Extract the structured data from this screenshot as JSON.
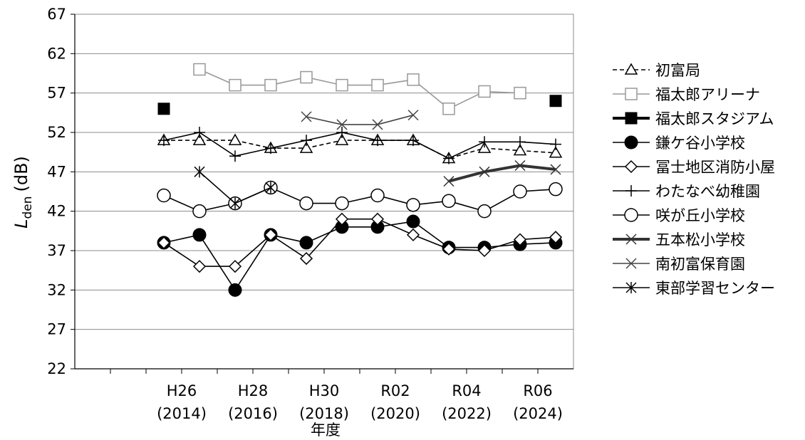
{
  "chart_data": {
    "type": "line",
    "title": "",
    "xlabel": "年度",
    "ylabel": {
      "symbol": "L",
      "subscript": "den",
      "unit": "(dB)"
    },
    "ylim": [
      22,
      67
    ],
    "yticks": [
      22,
      27,
      32,
      37,
      42,
      47,
      52,
      57,
      62,
      67
    ],
    "grid": true,
    "legend_position": "right",
    "x": [
      2013,
      2014,
      2015,
      2016,
      2017,
      2018,
      2019,
      2020,
      2021,
      2022,
      2023,
      2024
    ],
    "x_tick_labels": [
      {
        "era": "H26",
        "year": "(2014)"
      },
      {
        "era": "H28",
        "year": "(2016)"
      },
      {
        "era": "H30",
        "year": "(2018)"
      },
      {
        "era": "R02",
        "year": "(2020)"
      },
      {
        "era": "R04",
        "year": "(2022)"
      },
      {
        "era": "R06",
        "year": "(2024)"
      }
    ],
    "series": [
      {
        "name": "初富局",
        "marker": "triangle-open",
        "line": "dashed",
        "color": "#000000",
        "values": [
          51,
          51,
          51,
          50,
          50,
          51,
          51,
          51,
          48.7,
          50,
          49.7,
          49.4
        ]
      },
      {
        "name": "福太郎アリーナ",
        "marker": "square-open",
        "line": "solid",
        "color": "#999999",
        "values": [
          null,
          60,
          58,
          58,
          59,
          58,
          58,
          58.7,
          55,
          57.2,
          57,
          null
        ]
      },
      {
        "name": "福太郎スタジアム",
        "marker": "square-filled",
        "line": "thick",
        "color": "#000000",
        "values": [
          55,
          null,
          null,
          null,
          null,
          null,
          null,
          null,
          null,
          null,
          null,
          56
        ]
      },
      {
        "name": "鎌ケ谷小学校",
        "marker": "circle-filled",
        "line": "solid",
        "color": "#000000",
        "values": [
          38,
          39,
          32,
          39,
          38,
          40,
          40,
          40.7,
          37.4,
          37.4,
          37.8,
          38
        ]
      },
      {
        "name": "冨士地区消防小屋",
        "marker": "diamond-open",
        "line": "solid",
        "color": "#000000",
        "values": [
          38,
          35,
          35,
          39,
          36,
          41,
          41,
          39,
          37.2,
          37,
          38.4,
          38.7
        ]
      },
      {
        "name": "わたなべ幼稚園",
        "marker": "plus",
        "line": "solid",
        "color": "#000000",
        "values": [
          51,
          52,
          49,
          50,
          51,
          52,
          51,
          51,
          48.7,
          50.8,
          50.8,
          50.5
        ]
      },
      {
        "name": "咲が丘小学校",
        "marker": "circle-open",
        "line": "solid",
        "color": "#000000",
        "values": [
          44,
          42,
          43,
          45,
          43,
          43,
          44,
          42.8,
          43.3,
          42,
          44.5,
          44.8
        ]
      },
      {
        "name": "五本松小学校",
        "marker": "x",
        "line": "thick",
        "color": "#333333",
        "values": [
          null,
          null,
          null,
          null,
          null,
          null,
          null,
          null,
          45.8,
          47,
          47.8,
          47.3
        ]
      },
      {
        "name": "南初富保育園",
        "marker": "x",
        "line": "solid",
        "color": "#444444",
        "values": [
          null,
          null,
          null,
          null,
          54,
          53,
          53,
          54.2,
          null,
          null,
          null,
          null
        ]
      },
      {
        "name": "東部学習センター",
        "marker": "asterisk",
        "line": "solid",
        "color": "#000000",
        "values": [
          null,
          47,
          43,
          45,
          null,
          null,
          null,
          null,
          null,
          null,
          null,
          null
        ]
      }
    ]
  }
}
